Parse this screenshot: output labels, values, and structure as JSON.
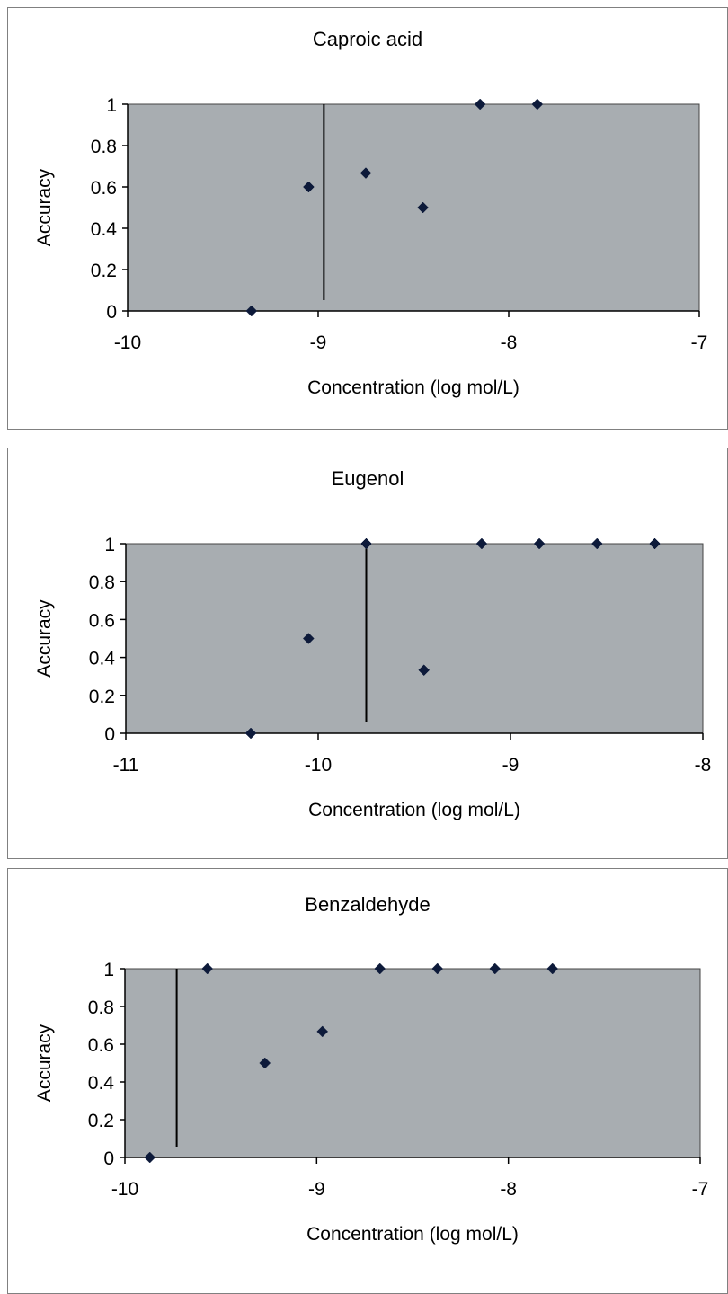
{
  "chart_data": [
    {
      "type": "scatter",
      "title": "Caproic acid",
      "xlabel": "Concentration (log mol/L)",
      "ylabel": "Accuracy",
      "xlim": [
        -10,
        -7
      ],
      "ylim": [
        0,
        1
      ],
      "xticks": [
        "-10",
        "-9",
        "-8",
        "-7"
      ],
      "yticks": [
        "0",
        "0.2",
        "0.4",
        "0.6",
        "0.8",
        "1"
      ],
      "threshold_x": -8.97,
      "points": [
        {
          "x": -9.35,
          "y": 0
        },
        {
          "x": -9.05,
          "y": 0.6
        },
        {
          "x": -8.75,
          "y": 0.667
        },
        {
          "x": -8.45,
          "y": 0.5
        },
        {
          "x": -8.15,
          "y": 1
        },
        {
          "x": -7.85,
          "y": 1
        }
      ],
      "grid": false,
      "marker_color": "#0d1a3a",
      "plot_bg": "#a8adb1"
    },
    {
      "type": "scatter",
      "title": "Eugenol",
      "xlabel": "Concentration (log mol/L)",
      "ylabel": "Accuracy",
      "xlim": [
        -11,
        -8
      ],
      "ylim": [
        0,
        1
      ],
      "xticks": [
        "-11",
        "-10",
        "-9",
        "-8"
      ],
      "yticks": [
        "0",
        "0.2",
        "0.4",
        "0.6",
        "0.8",
        "1"
      ],
      "threshold_x": -9.75,
      "points": [
        {
          "x": -10.35,
          "y": 0
        },
        {
          "x": -10.05,
          "y": 0.5
        },
        {
          "x": -9.75,
          "y": 1
        },
        {
          "x": -9.45,
          "y": 0.333
        },
        {
          "x": -9.15,
          "y": 1
        },
        {
          "x": -8.85,
          "y": 1
        },
        {
          "x": -8.55,
          "y": 1
        },
        {
          "x": -8.25,
          "y": 1
        }
      ],
      "grid": false,
      "marker_color": "#0d1a3a",
      "plot_bg": "#a8adb1"
    },
    {
      "type": "scatter",
      "title": "Benzaldehyde",
      "xlabel": "Concentration (log mol/L)",
      "ylabel": "Accuracy",
      "xlim": [
        -10,
        -7
      ],
      "ylim": [
        0,
        1
      ],
      "xticks": [
        "-10",
        "-9",
        "-8",
        "-7"
      ],
      "yticks": [
        "0",
        "0.2",
        "0.4",
        "0.6",
        "0.8",
        "1"
      ],
      "threshold_x": -9.73,
      "points": [
        {
          "x": -9.87,
          "y": 0
        },
        {
          "x": -9.57,
          "y": 1
        },
        {
          "x": -9.27,
          "y": 0.5
        },
        {
          "x": -8.97,
          "y": 0.667
        },
        {
          "x": -8.67,
          "y": 1
        },
        {
          "x": -8.37,
          "y": 1
        },
        {
          "x": -8.07,
          "y": 1
        },
        {
          "x": -7.77,
          "y": 1
        }
      ],
      "grid": false,
      "marker_color": "#0d1a3a",
      "plot_bg": "#a8adb1"
    }
  ]
}
